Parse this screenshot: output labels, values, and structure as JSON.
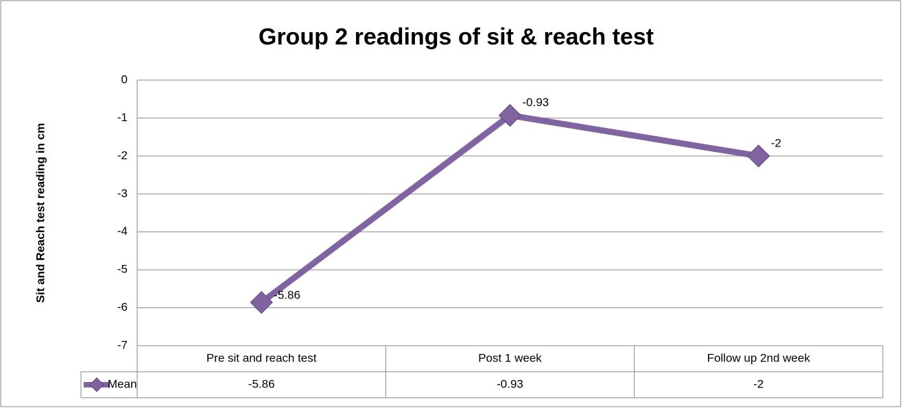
{
  "chart_data": {
    "type": "line",
    "title": "Group 2 readings of sit & reach test",
    "y_label": "Sit and Reach test  reading in cm",
    "categories": [
      "Pre sit and reach test",
      "Post 1 week",
      "Follow up 2nd week"
    ],
    "series": [
      {
        "name": "Mean",
        "color": "#8064a2",
        "values": [
          -5.86,
          -0.93,
          -2
        ]
      }
    ],
    "ylim": [
      -7,
      0
    ],
    "yticks": [
      0,
      -1,
      -2,
      -3,
      -4,
      -5,
      -6,
      -7
    ],
    "grid": true,
    "data_table": true
  }
}
